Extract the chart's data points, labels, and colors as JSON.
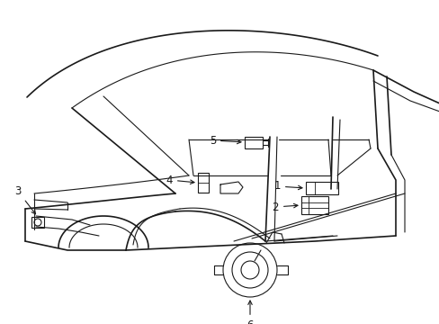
{
  "bg_color": "#ffffff",
  "line_color": "#1a1a1a",
  "figsize": [
    4.89,
    3.6
  ],
  "dpi": 100,
  "font_size": 8.5
}
